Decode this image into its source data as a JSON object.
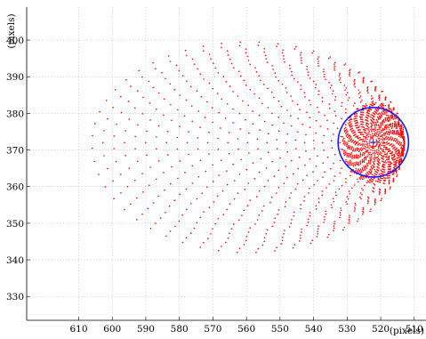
{
  "chart_data": {
    "type": "scatter",
    "xlabel": "(pixels)",
    "ylabel": "(pixels)",
    "x_reversed": true,
    "xlim": [
      625.5,
      506.5
    ],
    "ylim": [
      323.5,
      409
    ],
    "xticks": [
      610,
      600,
      590,
      580,
      570,
      560,
      550,
      540,
      530,
      520,
      510
    ],
    "yticks": [
      330,
      340,
      350,
      360,
      370,
      380,
      390,
      400
    ],
    "grid": true,
    "colors": {
      "points": "#ff0000",
      "ellipse": "#1a1aff",
      "center": "#1a1aff"
    },
    "series": [
      {
        "kind": "scatter-swarm",
        "description_values": {
          "tip_x": 513,
          "tip_y": 372,
          "left_extent_x": 600,
          "top_y": 397,
          "bottom_y": 344.5
        }
      }
    ],
    "ellipse": {
      "center_x": 522.2,
      "center_y": 372.1,
      "semi_axis_x": 10.5,
      "semi_axis_y": 9.5
    },
    "center_marker": {
      "x": 522.2,
      "y": 372.1,
      "symbol": "+"
    }
  }
}
